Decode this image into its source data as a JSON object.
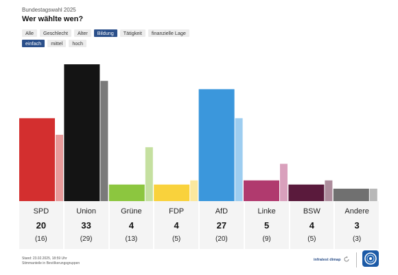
{
  "header": {
    "kicker": "Bundestagswahl 2025",
    "title": "Wer wählte wen?"
  },
  "filters": {
    "primary": [
      {
        "label": "Alle",
        "active": false
      },
      {
        "label": "Geschlecht",
        "active": false
      },
      {
        "label": "Alter",
        "active": false
      },
      {
        "label": "Bildung",
        "active": true
      },
      {
        "label": "Tätigkeit",
        "active": false
      },
      {
        "label": "finanzielle Lage",
        "active": false
      }
    ],
    "secondary": [
      {
        "label": "einfach",
        "active": true
      },
      {
        "label": "mittel",
        "active": false
      },
      {
        "label": "hoch",
        "active": false
      }
    ]
  },
  "chart_data": {
    "type": "bar",
    "categories": [
      "SPD",
      "Union",
      "Grüne",
      "FDP",
      "AfD",
      "Linke",
      "BSW",
      "Andere"
    ],
    "series": [
      {
        "values": [
          20,
          33,
          4,
          4,
          27,
          5,
          4,
          3
        ]
      },
      {
        "values": [
          16,
          29,
          13,
          5,
          20,
          9,
          5,
          3
        ]
      }
    ],
    "current_labels": [
      "20",
      "33",
      "4",
      "4",
      "27",
      "5",
      "4",
      "3"
    ],
    "previous_labels": [
      "(16)",
      "(29)",
      "(13)",
      "(5)",
      "(20)",
      "(9)",
      "(5)",
      "(3)"
    ],
    "colors": [
      "#d32f2f",
      "#141414",
      "#8cc63f",
      "#f9d23c",
      "#3b97dc",
      "#b03a6e",
      "#5a1a3c",
      "#707070"
    ],
    "previous_colors": [
      "#e89a9a",
      "#7a7a7a",
      "#c5e0a0",
      "#fbe89e",
      "#9dcdf0",
      "#d9a0bc",
      "#ad8c9c",
      "#b8b8b8"
    ],
    "ylim": [
      0,
      33
    ],
    "grid": false
  },
  "footer": {
    "line1": "Stand: 23.02.2025, 18:59 Uhr",
    "line2": "Stimmanteile in Bevölkerungsgruppen",
    "brand": "infratest dimap"
  }
}
